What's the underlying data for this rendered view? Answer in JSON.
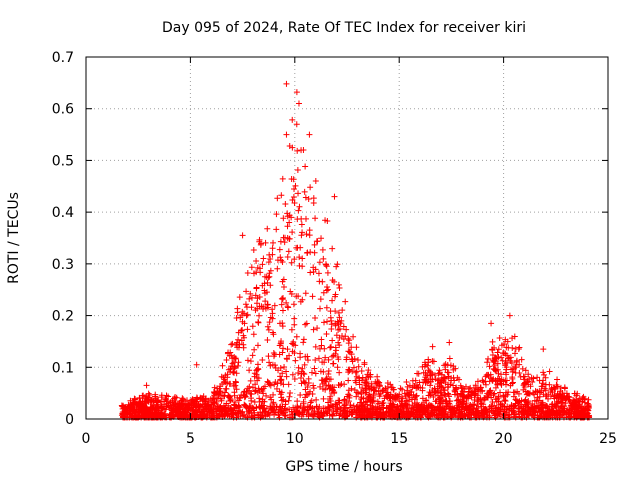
{
  "chart_data": {
    "type": "scatter",
    "title": "Day 095 of 2024, Rate Of TEC Index for receiver kiri",
    "xlabel": "GPS time / hours",
    "ylabel": "ROTI / TECUs",
    "xlim": [
      0,
      25
    ],
    "ylim": [
      0,
      0.7
    ],
    "xticks": [
      0,
      5,
      10,
      15,
      20,
      25
    ],
    "xtick_labels": [
      "0",
      "5",
      "10",
      "15",
      "20",
      "25"
    ],
    "yticks": [
      0,
      0.1,
      0.2,
      0.3,
      0.4,
      0.5,
      0.6,
      0.7
    ],
    "ytick_labels": [
      "0",
      "0.1",
      "0.2",
      "0.3",
      "0.4",
      "0.5",
      "0.6",
      "0.7"
    ],
    "grid": true,
    "marker": "+",
    "marker_color": "#ff0000",
    "x_range_observed": [
      1.7,
      24.1
    ],
    "envelope": {
      "x": [
        1.7,
        3,
        5,
        6,
        7,
        7.5,
        8,
        8.5,
        9,
        9.5,
        10,
        10.5,
        11,
        11.5,
        12,
        12.5,
        13,
        13.5,
        14,
        15,
        16,
        16.5,
        17,
        17.5,
        18,
        19,
        19.5,
        20,
        20.5,
        21,
        21.5,
        22,
        23,
        24.1
      ],
      "ymax": [
        0.03,
        0.05,
        0.04,
        0.05,
        0.15,
        0.28,
        0.33,
        0.36,
        0.4,
        0.5,
        0.62,
        0.52,
        0.48,
        0.4,
        0.32,
        0.22,
        0.14,
        0.1,
        0.08,
        0.06,
        0.1,
        0.13,
        0.1,
        0.12,
        0.06,
        0.08,
        0.17,
        0.15,
        0.18,
        0.1,
        0.08,
        0.1,
        0.06,
        0.04
      ]
    },
    "outliers": [
      {
        "x": 9.6,
        "y": 0.648
      },
      {
        "x": 10.1,
        "y": 0.632
      },
      {
        "x": 10.2,
        "y": 0.61
      },
      {
        "x": 9.6,
        "y": 0.55
      },
      {
        "x": 10.7,
        "y": 0.55
      },
      {
        "x": 10.3,
        "y": 0.52
      },
      {
        "x": 11.9,
        "y": 0.43
      },
      {
        "x": 7.5,
        "y": 0.355
      },
      {
        "x": 5.3,
        "y": 0.105
      },
      {
        "x": 20.3,
        "y": 0.2
      },
      {
        "x": 19.4,
        "y": 0.185
      },
      {
        "x": 21.9,
        "y": 0.135
      },
      {
        "x": 16.6,
        "y": 0.14
      },
      {
        "x": 17.4,
        "y": 0.148
      },
      {
        "x": 2.9,
        "y": 0.065
      }
    ]
  }
}
